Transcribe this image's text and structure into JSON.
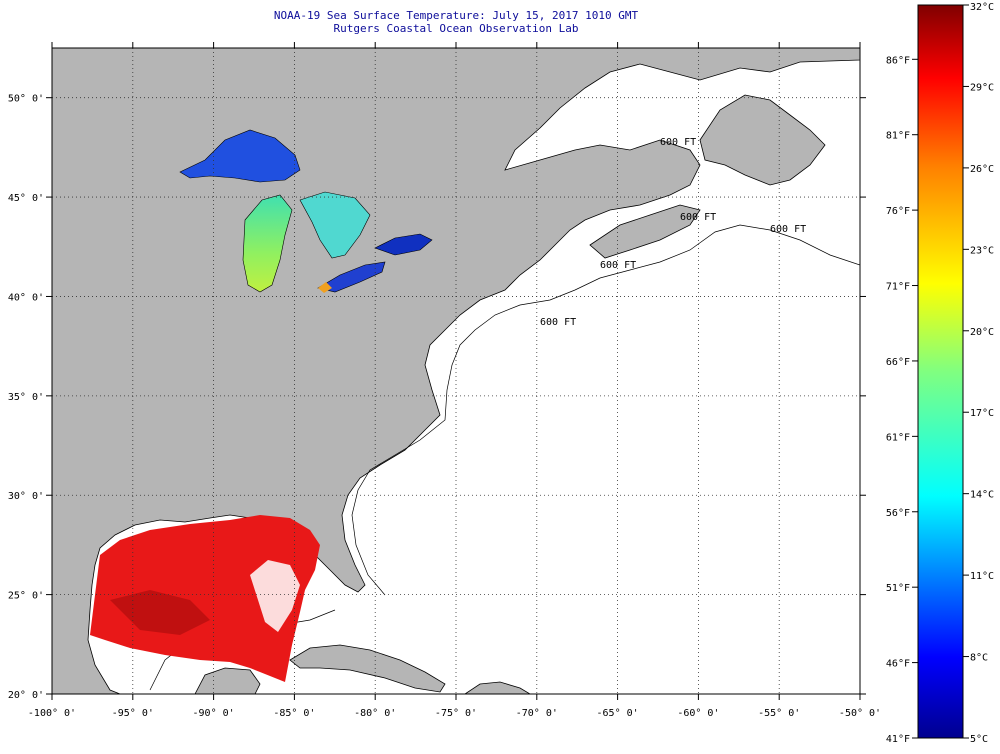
{
  "title": {
    "line1": "NOAA-19 Sea Surface Temperature:  July 15, 2017 1010 GMT",
    "line2": "Rutgers Coastal Ocean Observation Lab"
  },
  "map": {
    "lon_range": [
      -100,
      -50
    ],
    "lat_range": [
      20,
      52.5
    ],
    "lon_ticks": [
      -100,
      -95,
      -90,
      -85,
      -80,
      -75,
      -70,
      -65,
      -60,
      -55,
      -50
    ],
    "lat_ticks": [
      20,
      25,
      30,
      35,
      40,
      45,
      50
    ],
    "lon_labels": [
      "-100° 0'",
      "-95° 0'",
      "-90° 0'",
      "-85° 0'",
      "-80° 0'",
      "-75° 0'",
      "-70° 0'",
      "-65° 0'",
      "-60° 0'",
      "-55° 0'",
      "-50° 0'"
    ],
    "lat_labels": [
      "20° 0'",
      "25° 0'",
      "30° 0'",
      "35° 0'",
      "40° 0'",
      "45° 0'",
      "50° 0'"
    ],
    "grid": "dotted",
    "land_color": "#b5b5b5",
    "ocean_color": "#ffffff",
    "isobath_labels": [
      "600 FT",
      "600 FT",
      "600 FT",
      "600 FT",
      "600 FT"
    ]
  },
  "colorbar": {
    "celsius_labels": [
      "32°C",
      "29°C",
      "26°C",
      "23°C",
      "20°C",
      "17°C",
      "14°C",
      "11°C",
      "8°C",
      "5°C"
    ],
    "fahrenheit_labels": [
      "86°F",
      "81°F",
      "76°F",
      "71°F",
      "66°F",
      "61°F",
      "56°F",
      "51°F",
      "46°F",
      "41°F"
    ],
    "celsius_values": [
      32,
      29,
      26,
      23,
      20,
      17,
      14,
      11,
      8,
      5
    ],
    "fahrenheit_values": [
      86,
      81,
      76,
      71,
      66,
      61,
      56,
      51,
      46,
      41
    ],
    "range_celsius": [
      5,
      32
    ],
    "colors": [
      "#00008f",
      "#0000ff",
      "#0080ff",
      "#00ffff",
      "#80ff80",
      "#ffff00",
      "#ff8000",
      "#ff0000",
      "#800000"
    ]
  }
}
